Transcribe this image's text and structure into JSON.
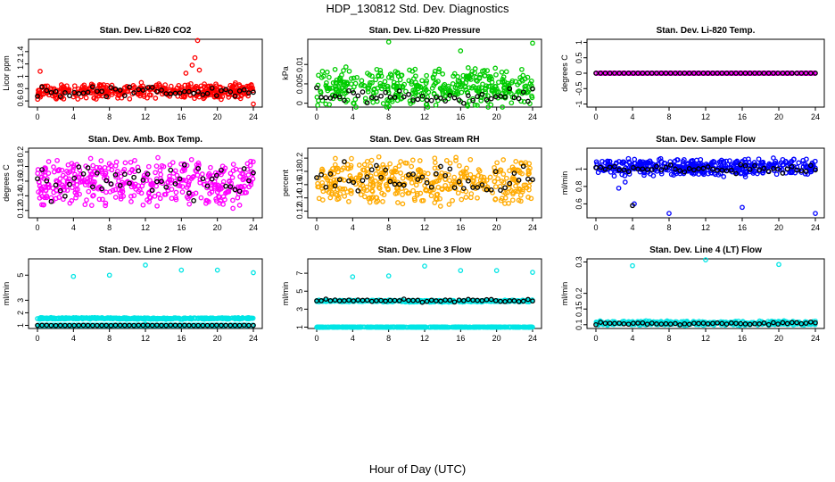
{
  "page_title": "HDP_130812  Std. Dev. Diagnostics",
  "footer": "Hour of Day (UTC)",
  "chart_data": [
    {
      "type": "scatter",
      "title": "Stan. Dev. Li-820 CO2",
      "ylabel": "Licor ppm",
      "xlim": [
        0,
        24
      ],
      "ylim": [
        0.5,
        1.6
      ],
      "xticks": [
        0,
        4,
        8,
        12,
        16,
        20,
        24
      ],
      "yticks": [
        0.6,
        0.8,
        1.0,
        1.2,
        1.4
      ],
      "series": [
        {
          "color": "#ff0000",
          "base": 0.76,
          "spread": 0.09,
          "outliers": [
            [
              17.8,
              1.58
            ],
            [
              17.2,
              1.18
            ],
            [
              17.5,
              1.3
            ],
            [
              18.0,
              1.1
            ],
            [
              16.5,
              1.05
            ],
            [
              0.3,
              1.08
            ],
            [
              24,
              0.55
            ]
          ]
        },
        {
          "color": "#000000",
          "base": 0.75,
          "spread": 0.06,
          "hourly": true
        }
      ]
    },
    {
      "type": "scatter",
      "title": "Stan. Dev. Li-820 Pressure",
      "ylabel": "kPa",
      "xlim": [
        0,
        24
      ],
      "ylim": [
        -0.001,
        0.0165
      ],
      "xticks": [
        0,
        4,
        8,
        12,
        16,
        20,
        24
      ],
      "yticks": [
        0.0,
        0.005,
        0.01
      ],
      "series": [
        {
          "color": "#00cc00",
          "base": 0.004,
          "spread": 0.0035,
          "outliers": [
            [
              8,
              0.0158
            ],
            [
              16,
              0.0135
            ],
            [
              24,
              0.0155
            ]
          ]
        },
        {
          "color": "#000000",
          "base": 0.0015,
          "spread": 0.0018,
          "hourly": true,
          "floor": 0.0
        }
      ]
    },
    {
      "type": "scatter",
      "title": "Stan. Dev. Li-820 Temp.",
      "ylabel": "degrees C",
      "xlim": [
        0,
        24
      ],
      "ylim": [
        -1.1,
        1.1
      ],
      "xticks": [
        0,
        4,
        8,
        12,
        16,
        20,
        24
      ],
      "yticks": [
        -1.0,
        -0.5,
        0.0,
        0.5,
        1.0
      ],
      "series": [
        {
          "color": "#ff00ff",
          "base": 0.0,
          "spread": 0.0
        },
        {
          "color": "#000000",
          "base": 0.0,
          "spread": 0.0,
          "hourly": true
        }
      ]
    },
    {
      "type": "scatter",
      "title": "Stan. Dev. Amb. Box Temp.",
      "ylabel": "degrees C",
      "xlim": [
        0,
        24
      ],
      "ylim": [
        0.11,
        0.205
      ],
      "xticks": [
        0,
        4,
        8,
        12,
        16,
        20,
        24
      ],
      "yticks": [
        0.12,
        0.14,
        0.16,
        0.18,
        0.2
      ],
      "series": [
        {
          "color": "#ff00ff",
          "base": 0.158,
          "spread": 0.024
        },
        {
          "color": "#000000",
          "base": 0.16,
          "spread": 0.018,
          "hourly": true
        }
      ]
    },
    {
      "type": "scatter",
      "title": "Stan. Dev. Gas Stream RH",
      "ylabel": "percent",
      "xlim": [
        0,
        24
      ],
      "ylim": [
        0.11,
        0.215
      ],
      "xticks": [
        0,
        4,
        8,
        12,
        16,
        20,
        24
      ],
      "yticks": [
        0.12,
        0.14,
        0.16,
        0.18,
        0.2
      ],
      "series": [
        {
          "color": "#ffaa00",
          "base": 0.165,
          "spread": 0.024
        },
        {
          "color": "#000000",
          "base": 0.168,
          "spread": 0.018,
          "hourly": true
        }
      ]
    },
    {
      "type": "scatter",
      "title": "Stan. Dev. Sample Flow",
      "ylabel": "ml/min",
      "xlim": [
        0,
        24
      ],
      "ylim": [
        0.44,
        1.24
      ],
      "xticks": [
        0,
        4,
        8,
        12,
        16,
        20,
        24
      ],
      "yticks": [
        0.6,
        0.8,
        1.0
      ],
      "series": [
        {
          "color": "#0000ff",
          "base": 1.02,
          "spread": 0.07,
          "outliers": [
            [
              2.5,
              0.78
            ],
            [
              3.2,
              0.85
            ],
            [
              4.2,
              0.6
            ],
            [
              8,
              0.49
            ],
            [
              16,
              0.56
            ],
            [
              24,
              0.49
            ],
            [
              2.0,
              0.92
            ]
          ]
        },
        {
          "color": "#000000",
          "base": 1.0,
          "spread": 0.04,
          "hourly": true,
          "outliers": [
            [
              4,
              0.58
            ]
          ]
        }
      ]
    },
    {
      "type": "scatter",
      "title": "Stan. Dev. Line 2 Flow",
      "ylabel": "ml/min",
      "xlim": [
        0,
        24
      ],
      "ylim": [
        0.75,
        6.3
      ],
      "xticks": [
        0,
        4,
        8,
        12,
        16,
        20,
        24
      ],
      "yticks": [
        1,
        2,
        3,
        5
      ],
      "series": [
        {
          "color": "#00e5e5",
          "base": 1.55,
          "spread": 0.07,
          "band": true,
          "outliers": [
            [
              4,
              4.9
            ],
            [
              8,
              5.0
            ],
            [
              12,
              5.8
            ],
            [
              16,
              5.4
            ],
            [
              20,
              5.4
            ],
            [
              24,
              5.2
            ],
            [
              12,
              1.1
            ]
          ]
        },
        {
          "color": "#00e5e5",
          "base": 1.0,
          "spread": 0.01
        },
        {
          "color": "#000000",
          "base": 1.0,
          "spread": 0.01,
          "hourly": true
        }
      ]
    },
    {
      "type": "scatter",
      "title": "Stan. Dev. Line 3 Flow",
      "ylabel": "ml/min",
      "xlim": [
        0,
        24
      ],
      "ylim": [
        0.85,
        8.6
      ],
      "xticks": [
        0,
        4,
        8,
        12,
        16,
        20,
        24
      ],
      "yticks": [
        1,
        3,
        5,
        7
      ],
      "series": [
        {
          "color": "#00e5e5",
          "base": 3.9,
          "spread": 0.12,
          "band": true,
          "outliers": [
            [
              4,
              6.6
            ],
            [
              8,
              6.7
            ],
            [
              12,
              7.8
            ],
            [
              16,
              7.3
            ],
            [
              20,
              7.3
            ],
            [
              24,
              7.1
            ]
          ]
        },
        {
          "color": "#00e5e5",
          "base": 1.0,
          "spread": 0.02
        },
        {
          "color": "#000000",
          "base": 3.95,
          "spread": 0.12,
          "hourly": true
        }
      ]
    },
    {
      "type": "scatter",
      "title": "Stan. Dev. Line 4 (LT) Flow",
      "ylabel": "ml/min",
      "xlim": [
        0,
        24
      ],
      "ylim": [
        0.088,
        0.31
      ],
      "xticks": [
        0,
        4,
        8,
        12,
        16,
        20,
        24
      ],
      "yticks": [
        0.1,
        0.15,
        0.2,
        0.3
      ],
      "series": [
        {
          "color": "#00e5e5",
          "base": 0.105,
          "spread": 0.005,
          "outliers": [
            [
              4,
              0.288
            ],
            [
              12,
              0.307
            ],
            [
              20,
              0.292
            ]
          ]
        },
        {
          "color": "#000000",
          "base": 0.104,
          "spread": 0.003,
          "hourly": true
        }
      ]
    }
  ]
}
